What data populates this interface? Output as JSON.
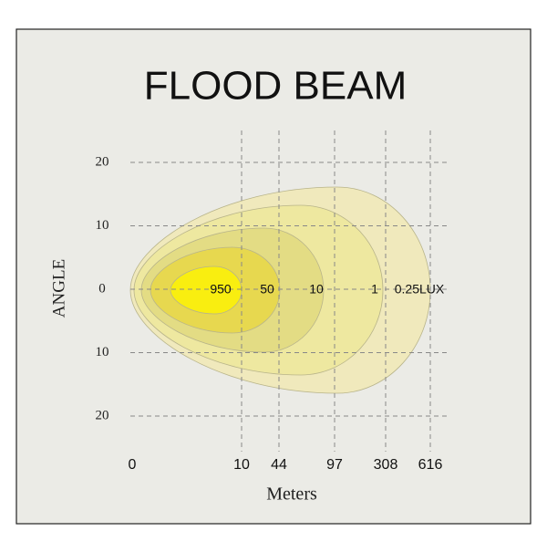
{
  "chart_data": {
    "type": "beam",
    "title": "FLOOD  BEAM",
    "ylabel": "ANGLE",
    "xlabel": "Meters",
    "ylim": [
      -20,
      20
    ],
    "yticks": [
      20,
      10,
      0,
      {
        "value": -10,
        "label": "10"
      },
      {
        "value": -20,
        "label": "20"
      }
    ],
    "xticks": [
      0,
      10,
      44,
      97,
      308,
      616
    ],
    "grid": true,
    "series": {
      "name": "LUX",
      "values": [
        0.25,
        1,
        10,
        50,
        950
      ],
      "value_labels": [
        "0.25LUX",
        "1",
        "10",
        "50",
        "950"
      ],
      "colors": [
        "#f0e9bc",
        "#eee8a0",
        "#e3dc84",
        "#e7d84f",
        "#f9ee10"
      ]
    }
  }
}
